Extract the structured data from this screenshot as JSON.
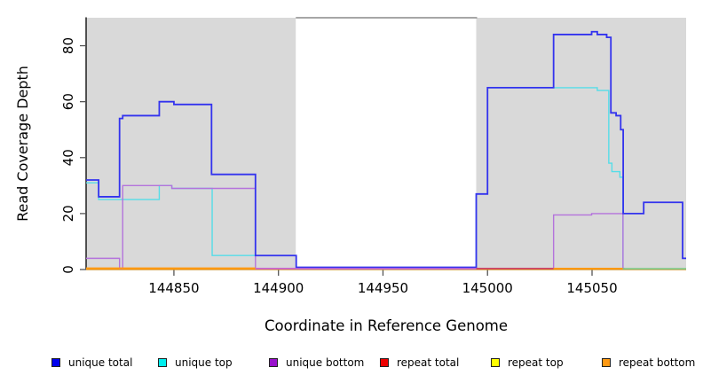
{
  "figure": {
    "xlabel": "Coordinate in Reference Genome",
    "ylabel": "Read Coverage Depth"
  },
  "chart_data": {
    "type": "line",
    "subtype": "step-coverage-profile",
    "title": "",
    "xlabel": "Coordinate in Reference Genome",
    "ylabel": "Read Coverage Depth",
    "xlim": [
      144808,
      145095
    ],
    "ylim": [
      0,
      90
    ],
    "x_ticks": [
      144850,
      144900,
      144950,
      145000,
      145050
    ],
    "y_ticks": [
      0,
      20,
      40,
      60,
      80
    ],
    "grid": false,
    "background_color": "#ffffff",
    "shaded_regions": {
      "color": "#d9d9d9",
      "regions": [
        [
          144808,
          144908.3
        ],
        [
          144994.6,
          145095
        ]
      ]
    },
    "top_border": {
      "color": "#888888",
      "x1": 144908.3,
      "x2": 144995
    },
    "series": [
      {
        "name": "unique total",
        "color": "#3333ee",
        "stroke_width": 1.8,
        "steps": [
          [
            144808,
            32
          ],
          [
            144814,
            26
          ],
          [
            144824,
            54
          ],
          [
            144825.5,
            55
          ],
          [
            144843,
            60
          ],
          [
            144850,
            59
          ],
          [
            144868,
            34
          ],
          [
            144889,
            5
          ],
          [
            144908.5,
            0.8
          ],
          [
            144994.6,
            27
          ],
          [
            145000,
            65
          ],
          [
            145031.6,
            84
          ],
          [
            145049.8,
            85
          ],
          [
            145052.5,
            84
          ],
          [
            145057,
            83
          ],
          [
            145059,
            56
          ],
          [
            145061.5,
            55
          ],
          [
            145063.7,
            50
          ],
          [
            145064.9,
            20
          ],
          [
            145074.7,
            24
          ],
          [
            145093.3,
            4
          ]
        ],
        "x_end": 145095
      },
      {
        "name": "unique top",
        "color": "#55dde8",
        "stroke_width": 1.4,
        "steps": [
          [
            144808,
            31
          ],
          [
            144814,
            25
          ],
          [
            144843,
            30
          ],
          [
            144849,
            29
          ],
          [
            144868.3,
            5
          ],
          [
            144908.5,
            0.3
          ],
          [
            144994.6,
            27
          ],
          [
            145000,
            65
          ],
          [
            145052.5,
            64
          ],
          [
            145058,
            38
          ],
          [
            145059.5,
            35
          ],
          [
            145063.3,
            33
          ],
          [
            145064.8,
            0.25
          ]
        ],
        "x_end": 145095
      },
      {
        "name": "unique bottom",
        "color": "#b473dc",
        "stroke_width": 1.4,
        "steps": [
          [
            144808,
            4
          ],
          [
            144824,
            0.4
          ],
          [
            144825.5,
            30
          ],
          [
            144849,
            29
          ],
          [
            144889,
            0.4
          ],
          [
            145031.6,
            19.5
          ],
          [
            145049.8,
            20
          ],
          [
            145064.8,
            0.4
          ]
        ],
        "x_end": 145065.5
      },
      {
        "name": "repeat total",
        "color": "#cc4060",
        "stroke_width": 1.4,
        "steps": [
          [
            144808,
            0.1
          ]
        ],
        "x_end": 145095
      },
      {
        "name": "repeat top",
        "color": "#ffff00",
        "stroke_width": 1.4,
        "steps": [
          [
            144808,
            0.1
          ]
        ],
        "x_end": 145095
      },
      {
        "name": "repeat bottom",
        "color": "#ff9912",
        "stroke_width": 1.4,
        "steps": [
          [
            144808,
            0.1
          ]
        ],
        "x_end": 145095
      }
    ],
    "visible_baseline_segments": [
      {
        "name": "repeat-bottom-left",
        "x1": 144808,
        "x2": 144889,
        "value": 0.5,
        "color": "#ff9912"
      },
      {
        "name": "unique-bottom-near-zero",
        "x1": 144889,
        "x2": 144994.6,
        "value": 0.3,
        "color": "#cc66cc"
      },
      {
        "name": "repeat-total-near-zero",
        "x1": 144994.6,
        "x2": 145031.6,
        "value": 0.35,
        "color": "#cc4060"
      },
      {
        "name": "repeat-bottom-right",
        "x1": 145031.6,
        "x2": 145064.8,
        "value": 0.4,
        "color": "#ff9912"
      },
      {
        "name": "blended-near-zero",
        "x1": 145064.8,
        "x2": 145095,
        "value": 0.3,
        "color": "#82c882"
      }
    ],
    "legend": {
      "position": "bottom",
      "items": [
        {
          "label": "unique total",
          "color": "#0000ee"
        },
        {
          "label": "unique top",
          "color": "#00eeee"
        },
        {
          "label": "unique bottom",
          "color": "#9911cc"
        },
        {
          "label": "repeat total",
          "color": "#ee0000"
        },
        {
          "label": "repeat top",
          "color": "#ffff00"
        },
        {
          "label": "repeat bottom",
          "color": "#ff9912"
        }
      ]
    }
  }
}
